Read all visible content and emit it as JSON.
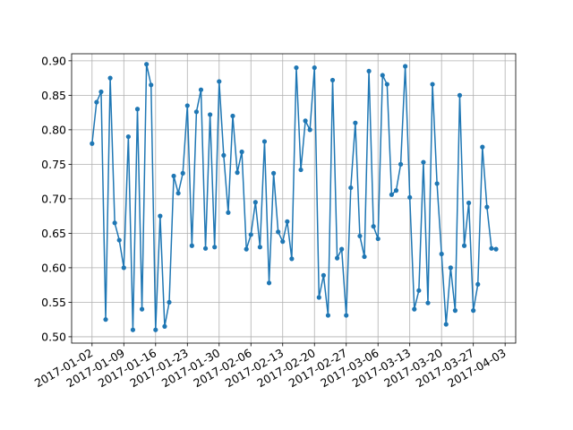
{
  "chart_data": {
    "type": "line",
    "grid": true,
    "color": "#1f77b4",
    "x": [
      "2017-01-02",
      "2017-01-03",
      "2017-01-04",
      "2017-01-05",
      "2017-01-06",
      "2017-01-07",
      "2017-01-08",
      "2017-01-09",
      "2017-01-10",
      "2017-01-11",
      "2017-01-12",
      "2017-01-13",
      "2017-01-14",
      "2017-01-15",
      "2017-01-16",
      "2017-01-17",
      "2017-01-18",
      "2017-01-19",
      "2017-01-20",
      "2017-01-21",
      "2017-01-22",
      "2017-01-23",
      "2017-01-24",
      "2017-01-25",
      "2017-01-26",
      "2017-01-27",
      "2017-01-28",
      "2017-01-29",
      "2017-01-30",
      "2017-01-31",
      "2017-02-01",
      "2017-02-02",
      "2017-02-03",
      "2017-02-04",
      "2017-02-05",
      "2017-02-06",
      "2017-02-07",
      "2017-02-08",
      "2017-02-09",
      "2017-02-10",
      "2017-02-11",
      "2017-02-12",
      "2017-02-13",
      "2017-02-14",
      "2017-02-15",
      "2017-02-16",
      "2017-02-17",
      "2017-02-18",
      "2017-02-19",
      "2017-02-20",
      "2017-02-21",
      "2017-02-22",
      "2017-02-23",
      "2017-02-24",
      "2017-02-25",
      "2017-02-26",
      "2017-02-27",
      "2017-02-28",
      "2017-03-01",
      "2017-03-02",
      "2017-03-03",
      "2017-03-04",
      "2017-03-05",
      "2017-03-06",
      "2017-03-07",
      "2017-03-08",
      "2017-03-09",
      "2017-03-10",
      "2017-03-11",
      "2017-03-12",
      "2017-03-13",
      "2017-03-14",
      "2017-03-15",
      "2017-03-16",
      "2017-03-17",
      "2017-03-18",
      "2017-03-19",
      "2017-03-20",
      "2017-03-21",
      "2017-03-22",
      "2017-03-23",
      "2017-03-24",
      "2017-03-25",
      "2017-03-26",
      "2017-03-27",
      "2017-03-28",
      "2017-03-29",
      "2017-03-30",
      "2017-03-31",
      "2017-04-01"
    ],
    "values": [
      0.78,
      0.84,
      0.855,
      0.525,
      0.875,
      0.665,
      0.64,
      0.6,
      0.79,
      0.51,
      0.83,
      0.54,
      0.895,
      0.865,
      0.51,
      0.675,
      0.515,
      0.55,
      0.733,
      0.708,
      0.737,
      0.835,
      0.632,
      0.826,
      0.858,
      0.628,
      0.822,
      0.63,
      0.87,
      0.763,
      0.68,
      0.82,
      0.738,
      0.768,
      0.627,
      0.648,
      0.695,
      0.63,
      0.783,
      0.578,
      0.737,
      0.652,
      0.638,
      0.667,
      0.613,
      0.89,
      0.742,
      0.813,
      0.8,
      0.89,
      0.557,
      0.589,
      0.531,
      0.872,
      0.614,
      0.627,
      0.531,
      0.716,
      0.81,
      0.646,
      0.616,
      0.885,
      0.66,
      0.642,
      0.879,
      0.866,
      0.706,
      0.712,
      0.75,
      0.892,
      0.702,
      0.54,
      0.567,
      0.753,
      0.549,
      0.866,
      0.722,
      0.62,
      0.518,
      0.6,
      0.538,
      0.85,
      0.632,
      0.694,
      0.538,
      0.576,
      0.775,
      0.688,
      0.628,
      0.627
    ],
    "xlim": [
      "2016-12-28T12:00",
      "2017-04-05T08:00"
    ],
    "xticks": [
      "2017-01-02",
      "2017-01-09",
      "2017-01-16",
      "2017-01-23",
      "2017-01-30",
      "2017-02-06",
      "2017-02-13",
      "2017-02-20",
      "2017-02-27",
      "2017-03-06",
      "2017-03-13",
      "2017-03-20",
      "2017-03-27",
      "2017-04-03"
    ],
    "ylim": [
      0.4908,
      0.9102
    ],
    "yticks": [
      {
        "value": 0.5,
        "label": "0.50"
      },
      0.55,
      {
        "value": 0.6,
        "label": "0.60"
      },
      0.65,
      {
        "value": 0.7,
        "label": "0.70"
      },
      0.75,
      {
        "value": 0.8,
        "label": "0.80"
      },
      0.85,
      {
        "value": 0.9,
        "label": "0.90"
      }
    ]
  }
}
